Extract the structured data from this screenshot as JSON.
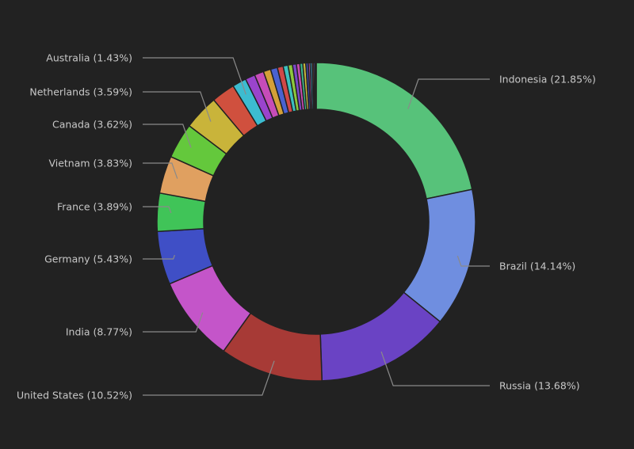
{
  "chart_data": {
    "type": "pie",
    "donut": true,
    "title": "",
    "slices": [
      {
        "name": "Indonesia",
        "value": 21.85,
        "label": "Indonesia (21.85%)",
        "color": "#57c27a"
      },
      {
        "name": "Brazil",
        "value": 14.14,
        "label": "Brazil (14.14%)",
        "color": "#6f8ee0"
      },
      {
        "name": "Russia",
        "value": 13.68,
        "label": "Russia (13.68%)",
        "color": "#6a43c4"
      },
      {
        "name": "United States",
        "value": 10.52,
        "label": "United States (10.52%)",
        "color": "#a73a36"
      },
      {
        "name": "India",
        "value": 8.77,
        "label": "India (8.77%)",
        "color": "#c455c9"
      },
      {
        "name": "Germany",
        "value": 5.43,
        "label": "Germany (5.43%)",
        "color": "#3f4fc6"
      },
      {
        "name": "France",
        "value": 3.89,
        "label": "France (3.89%)",
        "color": "#40c458"
      },
      {
        "name": "Vietnam",
        "value": 3.83,
        "label": "Vietnam (3.83%)",
        "color": "#e0a060"
      },
      {
        "name": "Canada",
        "value": 3.62,
        "label": "Canada (3.62%)",
        "color": "#64c83c"
      },
      {
        "name": "Netherlands",
        "value": 3.59,
        "label": "Netherlands (3.59%)",
        "color": "#c9b43a"
      },
      {
        "name": "",
        "value": 2.4,
        "color": "#d0503e"
      },
      {
        "name": "Australia",
        "value": 1.43,
        "label": "Australia (1.43%)",
        "color": "#3cbcd0"
      },
      {
        "name": "",
        "value": 1.0,
        "color": "#9a44cc"
      },
      {
        "name": "",
        "value": 0.95,
        "color": "#c64cb8"
      },
      {
        "name": "",
        "value": 0.75,
        "color": "#d4a038"
      },
      {
        "name": "",
        "value": 0.7,
        "color": "#4a62d0"
      },
      {
        "name": "",
        "value": 0.6,
        "color": "#d04848"
      },
      {
        "name": "",
        "value": 0.5,
        "color": "#3cc0c0"
      },
      {
        "name": "",
        "value": 0.45,
        "color": "#8cc83c"
      },
      {
        "name": "",
        "value": 0.4,
        "color": "#7a48c8"
      },
      {
        "name": "",
        "value": 0.35,
        "color": "#c84cb0"
      },
      {
        "name": "",
        "value": 0.3,
        "color": "#3cb890"
      },
      {
        "name": "",
        "value": 0.3,
        "color": "#c8b83c"
      },
      {
        "name": "",
        "value": 0.25,
        "color": "#3c48a8"
      },
      {
        "name": "",
        "value": 0.2,
        "color": "#b84c9c"
      },
      {
        "name": "",
        "value": 0.2,
        "color": "#48a0c8"
      },
      {
        "name": "",
        "value": 0.15,
        "color": "#c87848"
      },
      {
        "name": "",
        "value": 0.15,
        "color": "#6c48c8"
      },
      {
        "name": "",
        "value": 0.1,
        "color": "#b83c3c"
      }
    ]
  }
}
